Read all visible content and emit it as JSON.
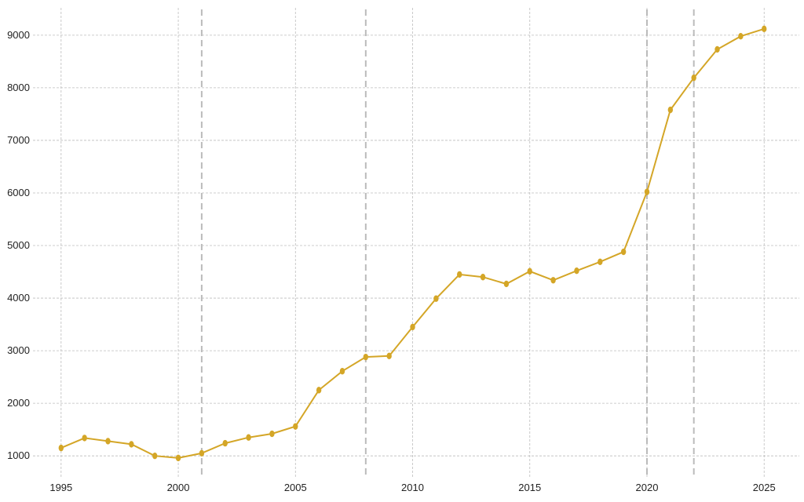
{
  "chart_data": {
    "type": "line",
    "title": "",
    "xlabel": "",
    "ylabel": "",
    "xlim": [
      1993.8,
      2026.5
    ],
    "ylim": [
      600,
      9520
    ],
    "x_ticks": [
      1995,
      2000,
      2005,
      2010,
      2015,
      2020,
      2025
    ],
    "y_ticks": [
      1000,
      2000,
      3000,
      4000,
      5000,
      6000,
      7000,
      8000,
      9000
    ],
    "grid": true,
    "legend": "none",
    "vertical_markers": [
      2001,
      2008,
      2020,
      2022
    ],
    "series": [
      {
        "color": "#D4A627",
        "x": [
          1995,
          1996,
          1997,
          1998,
          1999,
          2000,
          2001,
          2002,
          2003,
          2004,
          2005,
          2006,
          2007,
          2008,
          2009,
          2010,
          2011,
          2012,
          2013,
          2014,
          2015,
          2016,
          2017,
          2018,
          2019,
          2020,
          2021,
          2022,
          2023,
          2024,
          2025
        ],
        "values": [
          1150,
          1340,
          1280,
          1220,
          1000,
          960,
          1050,
          1240,
          1350,
          1420,
          1560,
          2250,
          2610,
          2880,
          2900,
          3450,
          3990,
          4450,
          4400,
          4270,
          4510,
          4340,
          4520,
          4690,
          4880,
          6020,
          7580,
          8190,
          8730,
          8980,
          9120
        ]
      }
    ]
  }
}
